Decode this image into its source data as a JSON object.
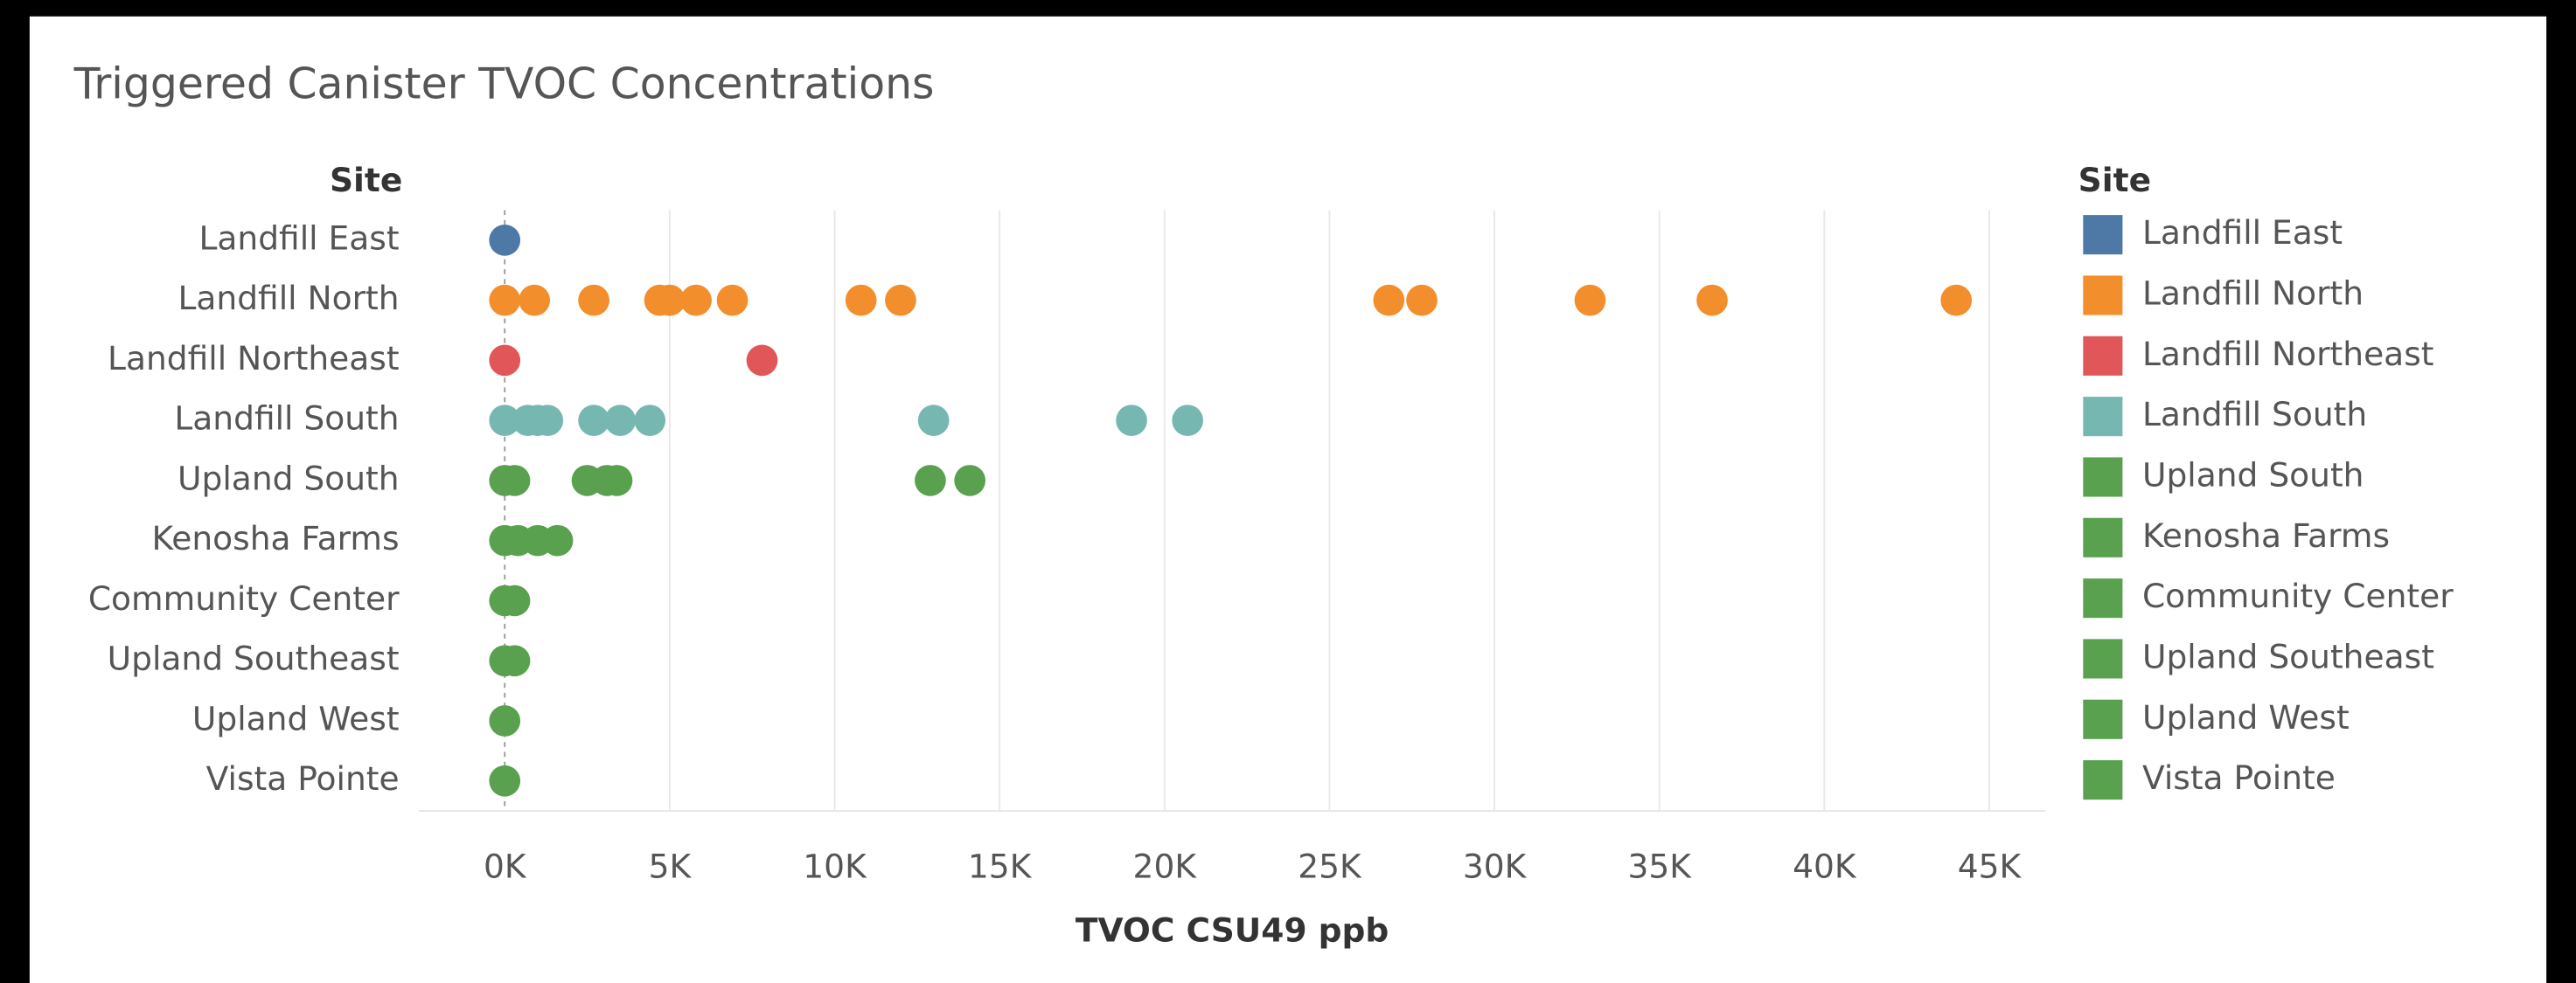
{
  "chart_data": {
    "type": "strip",
    "title": "Triggered Canister TVOC Concentrations",
    "y_label": "Site",
    "legend_title": "Site",
    "x_label": "TVOC CSU49 ppb",
    "xlim": [
      -2600,
      46700
    ],
    "xticks": [
      {
        "value": 0,
        "label": "0K"
      },
      {
        "value": 5000,
        "label": "5K"
      },
      {
        "value": 10000,
        "label": "10K"
      },
      {
        "value": 15000,
        "label": "15K"
      },
      {
        "value": 20000,
        "label": "20K"
      },
      {
        "value": 25000,
        "label": "25K"
      },
      {
        "value": 30000,
        "label": "30K"
      },
      {
        "value": 35000,
        "label": "35K"
      },
      {
        "value": 40000,
        "label": "40K"
      },
      {
        "value": 45000,
        "label": "45K"
      }
    ],
    "grid": true,
    "legend": "right",
    "series": [
      {
        "name": "Landfill East",
        "color": "#4e79a7",
        "values": [
          0
        ]
      },
      {
        "name": "Landfill North",
        "color": "#f28e2b",
        "values": [
          0,
          900,
          2700,
          4700,
          5000,
          5800,
          6900,
          10800,
          12000,
          26800,
          27800,
          32900,
          36600,
          44000
        ]
      },
      {
        "name": "Landfill Northeast",
        "color": "#e15759",
        "values": [
          0,
          7800
        ]
      },
      {
        "name": "Landfill South",
        "color": "#76b7b2",
        "values": [
          0,
          700,
          1000,
          1300,
          2700,
          3500,
          4400,
          13000,
          19000,
          20700
        ]
      },
      {
        "name": "Upland South",
        "color": "#59a14f",
        "values": [
          0,
          300,
          2500,
          3100,
          3400,
          12900,
          14100
        ]
      },
      {
        "name": "Kenosha Farms",
        "color": "#59a14f",
        "values": [
          0,
          400,
          1000,
          1600
        ]
      },
      {
        "name": "Community Center",
        "color": "#59a14f",
        "values": [
          0,
          300
        ]
      },
      {
        "name": "Upland Southeast",
        "color": "#59a14f",
        "values": [
          0,
          300
        ]
      },
      {
        "name": "Upland West",
        "color": "#59a14f",
        "values": [
          0
        ]
      },
      {
        "name": "Vista Pointe",
        "color": "#59a14f",
        "values": [
          0
        ]
      }
    ]
  }
}
